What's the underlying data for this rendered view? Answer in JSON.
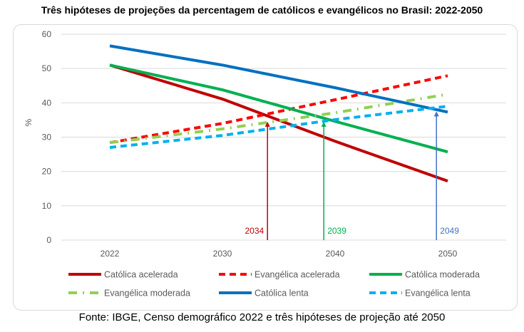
{
  "chart_data": {
    "type": "line",
    "title": "Três hipóteses de projeções da percentagem de católicos e evangélicos no Brasil: 2022-2050",
    "xlabel": "",
    "ylabel": "%",
    "categories": [
      "2022",
      "2030",
      "2040",
      "2050"
    ],
    "ylim": [
      0,
      60
    ],
    "yticks": [
      0,
      10,
      20,
      30,
      40,
      50,
      60
    ],
    "grid": true,
    "legend_position": "bottom",
    "series": [
      {
        "name": "Católica acelerada",
        "values": [
          51,
          41.1,
          28.8,
          17.2
        ],
        "color": "#c00000",
        "style": "solid"
      },
      {
        "name": "Evangélica acelerada",
        "values": [
          28.4,
          34.0,
          40.9,
          47.9
        ],
        "color": "#ff0000",
        "style": "dash"
      },
      {
        "name": "Católica moderada",
        "values": [
          51,
          43.8,
          34.6,
          25.7
        ],
        "color": "#00b050",
        "style": "solid"
      },
      {
        "name": "Evangélica moderada",
        "values": [
          28.4,
          32.4,
          37.1,
          42.5
        ],
        "color": "#92d050",
        "style": "dashdot"
      },
      {
        "name": "Católica lenta",
        "values": [
          56.6,
          51.0,
          44.4,
          37.3
        ],
        "color": "#0070c0",
        "style": "solid"
      },
      {
        "name": "Evangélica lenta",
        "values": [
          27.0,
          30.5,
          35.1,
          39.0
        ],
        "color": "#00b0f0",
        "style": "dash"
      }
    ],
    "annotations": [
      {
        "label": "2034",
        "year": 2034,
        "value": 34.5,
        "color": "#c00000"
      },
      {
        "label": "2039",
        "year": 2039,
        "value": 34.5,
        "color": "#00b050"
      },
      {
        "label": "2049",
        "year": 2049,
        "value": 37.5,
        "color": "#4472c4"
      }
    ]
  },
  "footer": "Fonte: IBGE, Censo demográfico 2022 e três hipóteses de projeção até 2050"
}
